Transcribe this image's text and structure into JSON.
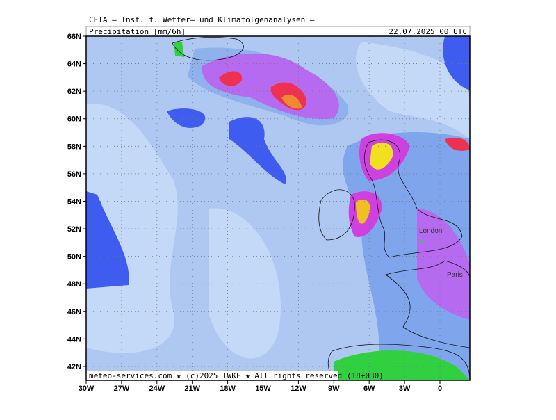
{
  "header": {
    "line1": "CETA — Inst. f. Wetter— und Klimafolgenanalysen —",
    "parameter": "Precipitation [mm/6h]",
    "valid": "22.07.2025 00 UTC"
  },
  "axes": {
    "lat_labels": [
      "66N",
      "64N",
      "62N",
      "60N",
      "58N",
      "56N",
      "54N",
      "52N",
      "50N",
      "48N",
      "46N",
      "44N",
      "42N"
    ],
    "lon_labels": [
      "30W",
      "27W",
      "24W",
      "21W",
      "18W",
      "15W",
      "12W",
      "9W",
      "6W",
      "3W",
      "0"
    ]
  },
  "places": [
    "London",
    "Paris"
  ],
  "footer": "meteo-services.com ★ (c)2025 IWKF ★ All rights reserved (18+030)"
}
